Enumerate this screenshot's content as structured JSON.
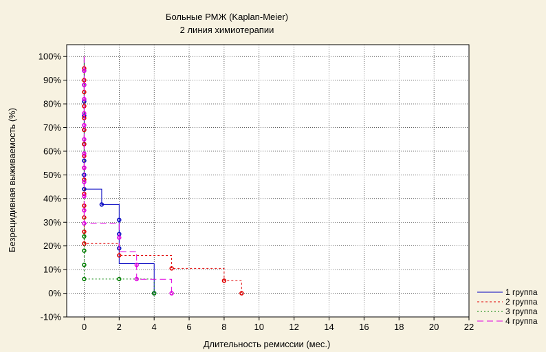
{
  "chart_data": {
    "type": "line",
    "title_line1": "Больные РМЖ (Kaplan-Meier)",
    "title_line2": "2 линия химиотерапии",
    "xlabel": "Длительность ремиссии (мес.)",
    "ylabel": "Безрецидивная выживаемость (%)",
    "xlim": [
      -1,
      22
    ],
    "ylim": [
      -10,
      105
    ],
    "x_ticks": [
      0,
      2,
      4,
      6,
      8,
      10,
      12,
      14,
      16,
      18,
      20,
      22
    ],
    "x_tick_labels": [
      "0",
      "2",
      "4",
      "6",
      "8",
      "10",
      "12",
      "14",
      "16",
      "18",
      "20",
      "22"
    ],
    "y_ticks": [
      -10,
      0,
      10,
      20,
      30,
      40,
      50,
      60,
      70,
      80,
      90,
      100
    ],
    "y_tick_labels": [
      "-10%",
      "0%",
      "10%",
      "20%",
      "30%",
      "40%",
      "50%",
      "60%",
      "70%",
      "80%",
      "90%",
      "100%"
    ],
    "grid": true,
    "legend_position": "bottom-right",
    "series": [
      {
        "name": "1 группа",
        "color": "#0000c0",
        "dash": "",
        "steps": [
          [
            0,
            100
          ],
          [
            0,
            44
          ],
          [
            1,
            44
          ],
          [
            1,
            37.5
          ],
          [
            2,
            37.5
          ],
          [
            2,
            12.5
          ],
          [
            4,
            12.5
          ],
          [
            4,
            0
          ]
        ],
        "points": [
          [
            0,
            94
          ],
          [
            0,
            88
          ],
          [
            0,
            81
          ],
          [
            0,
            75
          ],
          [
            0,
            69
          ],
          [
            0,
            63
          ],
          [
            0,
            56
          ],
          [
            0,
            50
          ],
          [
            0,
            44
          ],
          [
            1,
            37.5
          ],
          [
            2,
            31
          ],
          [
            2,
            25
          ],
          [
            2,
            19
          ],
          [
            4,
            0
          ]
        ]
      },
      {
        "name": "2 группа",
        "color": "#e00000",
        "dash": "3,3",
        "steps": [
          [
            0,
            100
          ],
          [
            0,
            21
          ],
          [
            2,
            21
          ],
          [
            2,
            16
          ],
          [
            5,
            16
          ],
          [
            5,
            10.5
          ],
          [
            8,
            10.5
          ],
          [
            8,
            5.3
          ],
          [
            9,
            5.3
          ],
          [
            9,
            0
          ]
        ],
        "points": [
          [
            0,
            95
          ],
          [
            0,
            90
          ],
          [
            0,
            85
          ],
          [
            0,
            79
          ],
          [
            0,
            74
          ],
          [
            0,
            69
          ],
          [
            0,
            63
          ],
          [
            0,
            58
          ],
          [
            0,
            53
          ],
          [
            0,
            48
          ],
          [
            0,
            42
          ],
          [
            0,
            37
          ],
          [
            0,
            32
          ],
          [
            0,
            26
          ],
          [
            0,
            21
          ],
          [
            2,
            16
          ],
          [
            5,
            10.5
          ],
          [
            8,
            5.3
          ],
          [
            9,
            0
          ]
        ]
      },
      {
        "name": "3 группа",
        "color": "#008000",
        "dash": "2,3",
        "steps": [
          [
            0,
            100
          ],
          [
            0,
            6
          ],
          [
            2,
            6
          ],
          [
            2,
            6
          ],
          [
            4,
            6
          ],
          [
            4,
            0
          ]
        ],
        "points": [
          [
            0,
            24
          ],
          [
            0,
            18
          ],
          [
            0,
            12
          ],
          [
            0,
            6
          ],
          [
            2,
            6
          ],
          [
            4,
            0
          ]
        ]
      },
      {
        "name": "4 группа",
        "color": "#e000e0",
        "dash": "9,5",
        "steps": [
          [
            0,
            100
          ],
          [
            0,
            29.5
          ],
          [
            2,
            29.5
          ],
          [
            2,
            17.6
          ],
          [
            3,
            17.6
          ],
          [
            3,
            5.9
          ],
          [
            5,
            5.9
          ],
          [
            5,
            0
          ]
        ],
        "points": [
          [
            0,
            94
          ],
          [
            0,
            88
          ],
          [
            0,
            82
          ],
          [
            0,
            76
          ],
          [
            0,
            71
          ],
          [
            0,
            65
          ],
          [
            0,
            59
          ],
          [
            0,
            53
          ],
          [
            0,
            47
          ],
          [
            0,
            41
          ],
          [
            0,
            35
          ],
          [
            0,
            29.5
          ],
          [
            2,
            23.5
          ],
          [
            3,
            12
          ],
          [
            3,
            6
          ],
          [
            5,
            0
          ]
        ]
      }
    ]
  }
}
